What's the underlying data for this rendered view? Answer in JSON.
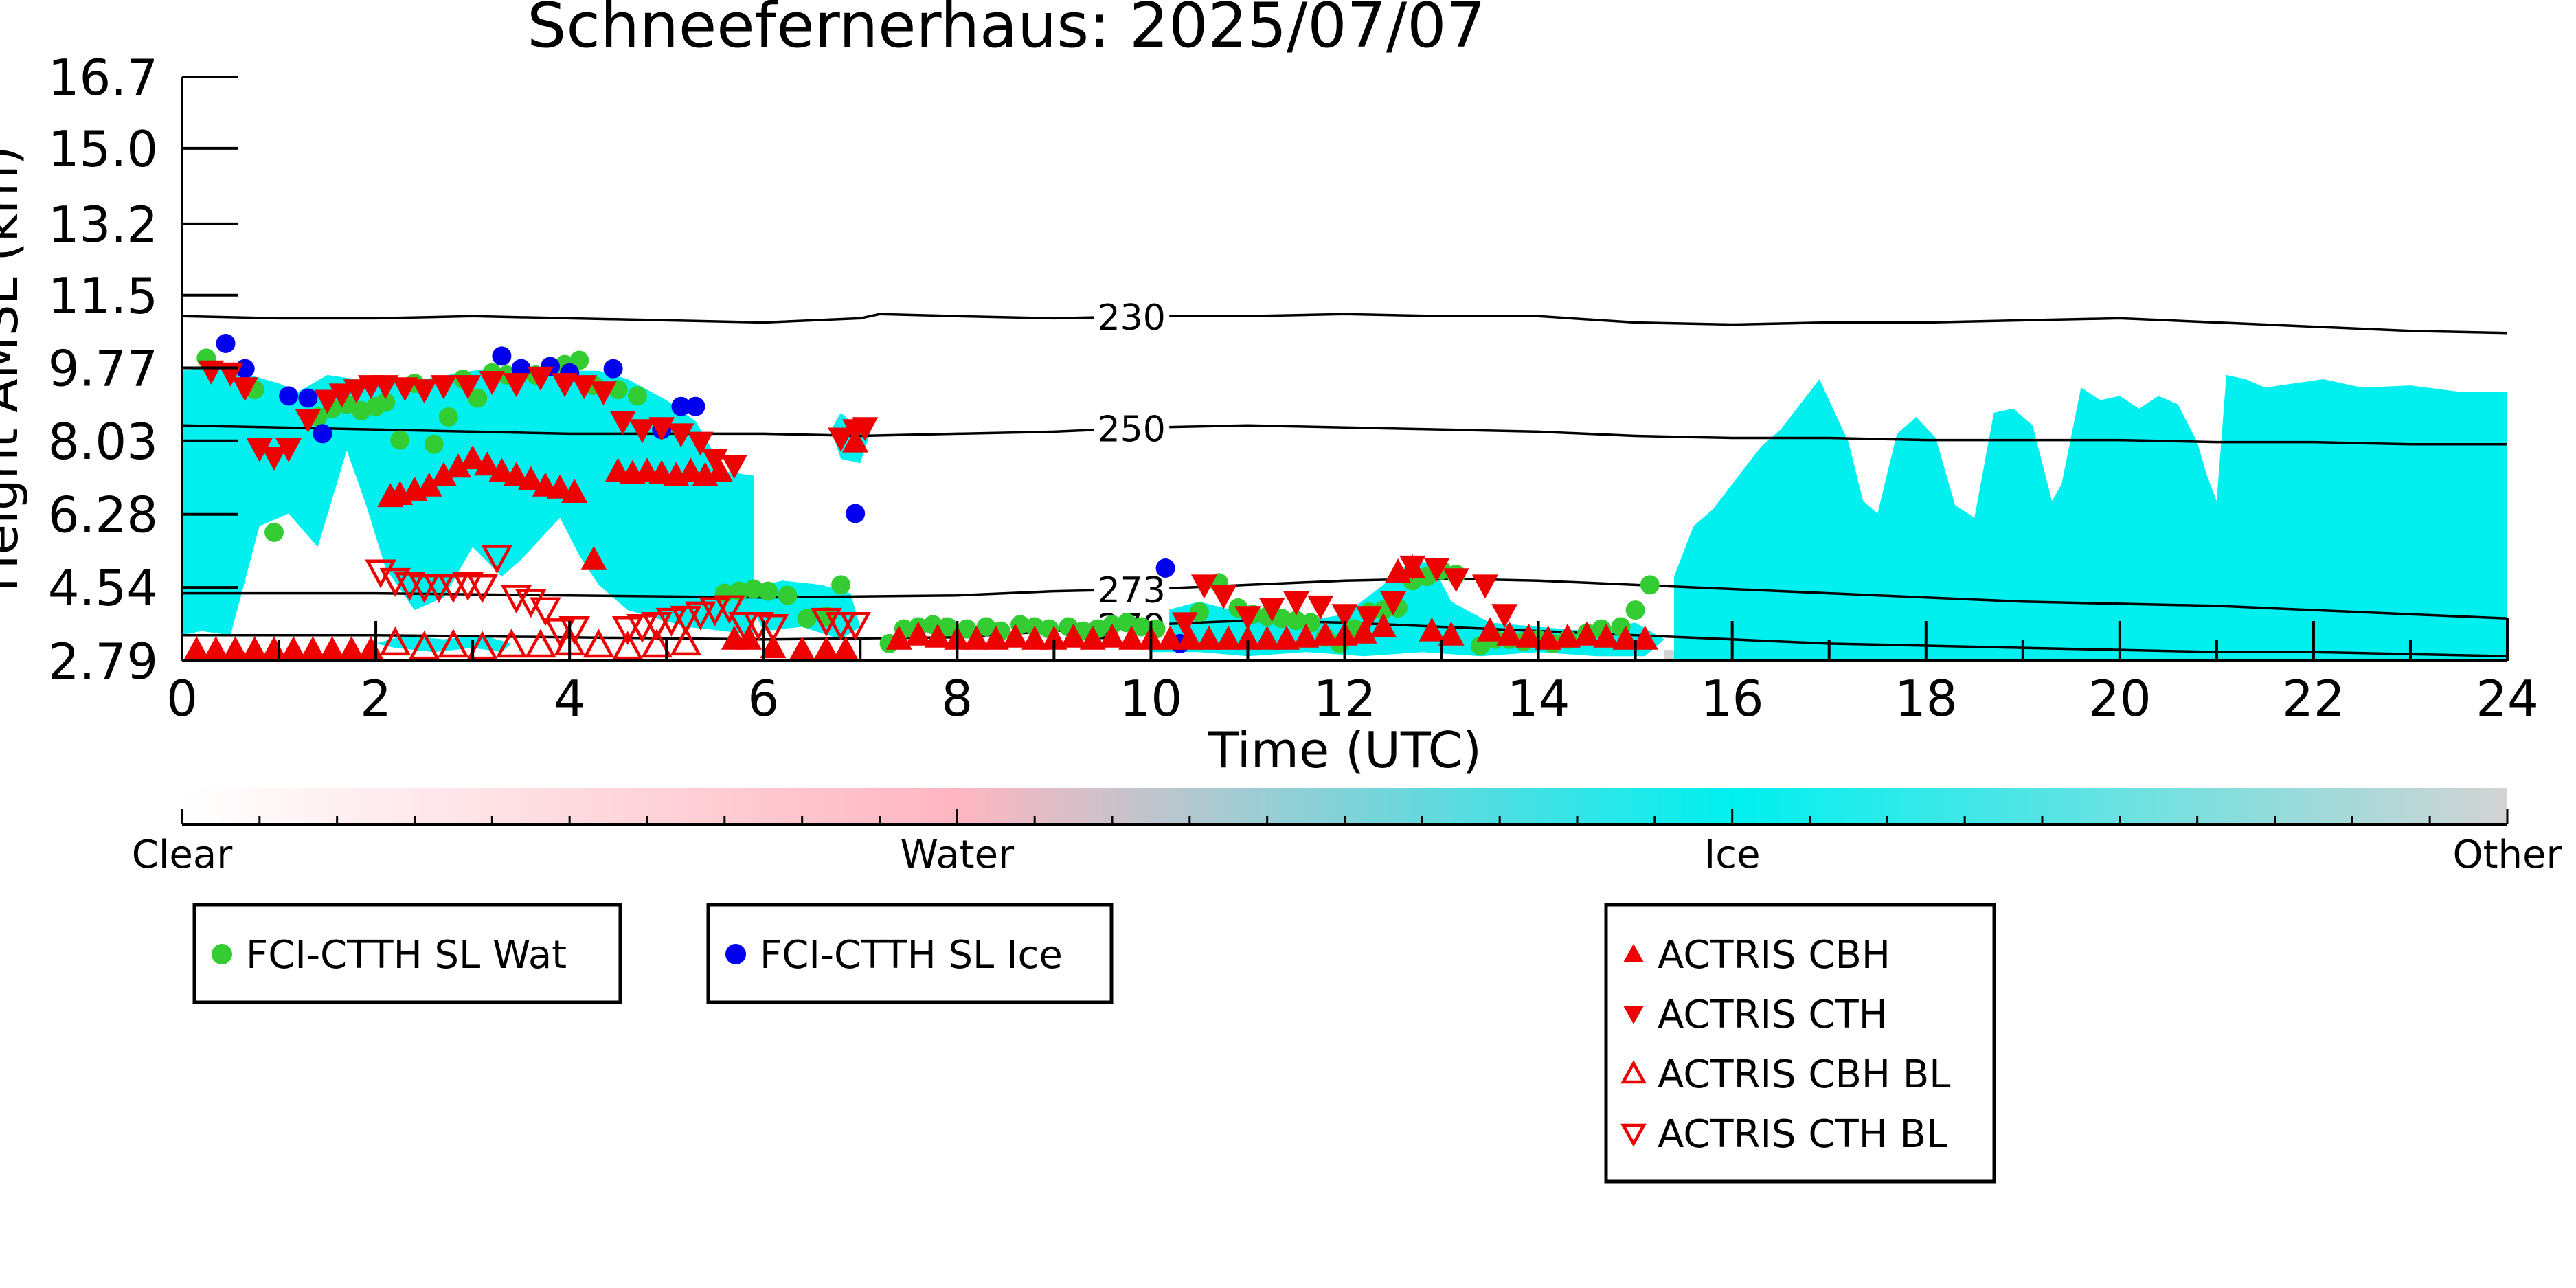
{
  "chart_data": {
    "type": "scatter",
    "title": "Schneefernerhaus: 2025/07/07",
    "xlabel": "Time (UTC)",
    "ylabel": "Height AMSL (km)",
    "xlim": [
      0,
      24
    ],
    "ylim": [
      2.79,
      16.7
    ],
    "x_ticks": [
      "0",
      "2",
      "4",
      "6",
      "8",
      "10",
      "12",
      "14",
      "16",
      "18",
      "20",
      "22",
      "24"
    ],
    "y_ticks": [
      "2.79",
      "4.54",
      "6.28",
      "8.03",
      "9.77",
      "11.5",
      "13.2",
      "15.0",
      "16.7"
    ],
    "grid": false,
    "colors": {
      "clear": "#ffffff",
      "water": "#ffb6c1",
      "ice": "#00f0f0",
      "other": "#d3d3d3",
      "fci_water": "#33cc33",
      "fci_ice": "#0000ee",
      "actris": "#ee0000",
      "isotherm": "#000000"
    },
    "classification": {
      "type": "heatmap",
      "labels": [
        "Clear",
        "Water",
        "Ice",
        "Other"
      ],
      "ice_regions": [
        {
          "x": [
            0,
            0.3,
            0.7,
            1.0,
            1.2,
            1.5,
            1.8,
            2.0,
            2.5,
            3.0,
            3.4,
            3.7,
            4.0,
            4.3,
            4.6,
            5.0,
            5.3,
            5.6,
            5.9,
            5.9,
            5.6,
            5.2,
            4.9,
            4.6,
            4.3,
            4.1,
            3.9,
            3.7,
            3.5,
            3.3,
            3.0,
            2.7,
            2.4,
            2.1,
            1.9,
            1.7,
            1.4,
            1.1,
            0.8,
            0.5,
            0.2,
            0
          ],
          "y": [
            9.7,
            9.8,
            9.6,
            9.4,
            9.2,
            9.6,
            9.5,
            9.4,
            9.5,
            9.7,
            9.8,
            9.6,
            9.7,
            9.7,
            9.5,
            9.0,
            8.5,
            7.3,
            7.2,
            3.4,
            3.5,
            3.6,
            3.8,
            4.0,
            4.6,
            5.3,
            6.2,
            5.7,
            5.2,
            4.8,
            5.5,
            4.3,
            4.0,
            5.0,
            6.5,
            7.8,
            5.5,
            6.3,
            6.0,
            3.4,
            3.5,
            3.4
          ]
        },
        {
          "x": [
            2.0,
            2.3,
            2.7,
            3.1,
            3.4,
            3.3,
            3.0,
            2.6,
            2.2
          ],
          "y": [
            3.2,
            3.4,
            3.3,
            3.4,
            3.2,
            3.0,
            3.1,
            3.0,
            3.1
          ]
        },
        {
          "x": [
            5.8,
            6.2,
            6.6,
            6.9,
            7.0,
            6.8,
            6.4,
            6.0
          ],
          "y": [
            4.5,
            4.7,
            4.6,
            4.4,
            3.6,
            3.3,
            3.6,
            3.5
          ]
        },
        {
          "x": [
            6.7,
            6.8,
            6.9,
            7.0,
            7.1,
            7.0,
            6.8
          ],
          "y": [
            8.3,
            8.7,
            8.5,
            8.6,
            8.2,
            7.5,
            7.6
          ]
        },
        {
          "x": [
            10.0,
            10.5,
            11.0,
            11.5,
            12.0,
            12.4,
            12.7,
            12.9,
            13.1,
            13.5,
            14.0,
            14.5,
            15.0,
            15.3,
            15.1,
            14.6,
            14.0,
            13.4,
            12.8,
            12.2,
            11.6,
            11.0,
            10.5,
            10.0
          ],
          "y": [
            3.9,
            4.2,
            3.9,
            3.7,
            3.9,
            4.6,
            5.2,
            5.1,
            4.2,
            3.7,
            3.6,
            3.5,
            3.7,
            3.3,
            2.9,
            2.9,
            3.0,
            2.9,
            3.0,
            2.9,
            3.0,
            2.9,
            3.0,
            3.0
          ]
        },
        {
          "x": [
            15.4,
            15.6,
            15.8,
            16.0,
            16.3,
            16.5,
            16.7,
            16.9,
            17.0,
            17.2,
            17.35,
            17.5,
            17.7,
            17.9,
            18.1,
            18.3,
            18.5,
            18.7,
            18.9,
            19.1,
            19.3,
            19.4,
            19.6,
            19.8,
            20.0,
            20.2,
            20.4,
            20.6,
            20.8,
            20.9,
            21.0,
            21.1,
            21.3,
            21.5,
            21.8,
            22.1,
            22.5,
            23.0,
            23.5,
            24.0,
            24.0,
            23.0,
            22.0,
            21.0,
            20.0,
            19.0,
            18.0,
            17.0,
            16.0,
            15.4
          ],
          "y": [
            4.8,
            6.0,
            6.4,
            7.0,
            7.9,
            8.3,
            8.9,
            9.5,
            9.0,
            8.0,
            6.6,
            6.3,
            8.2,
            8.6,
            8.1,
            6.5,
            6.2,
            8.7,
            8.8,
            8.4,
            6.6,
            7.0,
            9.3,
            9.0,
            9.1,
            8.8,
            9.1,
            8.9,
            8.0,
            7.2,
            6.6,
            9.6,
            9.5,
            9.3,
            9.4,
            9.5,
            9.3,
            9.35,
            9.2,
            9.2,
            2.79,
            2.8,
            2.8,
            2.79,
            2.8,
            2.8,
            2.79,
            2.79,
            2.8,
            2.79
          ]
        }
      ],
      "other_regions": [
        {
          "x": [
            15.3,
            16.0,
            18.0,
            20.0,
            22.0,
            24.0,
            24.0,
            15.3
          ],
          "y": [
            3.05,
            3.05,
            3.0,
            3.0,
            2.95,
            2.9,
            2.79,
            2.79
          ]
        }
      ]
    },
    "isotherms": [
      {
        "label": "230",
        "x": [
          0,
          1,
          2,
          3,
          4,
          5,
          6,
          7,
          7.2,
          8,
          9,
          10,
          11,
          12,
          13,
          14,
          15,
          16,
          17,
          18,
          19,
          20,
          21,
          22,
          23,
          24
        ],
        "y": [
          11.0,
          10.95,
          10.95,
          11.0,
          10.95,
          10.9,
          10.85,
          10.95,
          11.05,
          11.0,
          10.95,
          11.0,
          11.0,
          11.05,
          11.0,
          11.0,
          10.85,
          10.8,
          10.85,
          10.85,
          10.9,
          10.95,
          10.85,
          10.75,
          10.65,
          10.6
        ],
        "label_x": 9.8
      },
      {
        "label": "250",
        "x": [
          0,
          1,
          2,
          3,
          4,
          5,
          6,
          7,
          8,
          9,
          10,
          11,
          12,
          13,
          14,
          15,
          16,
          17,
          18,
          19,
          20,
          21,
          22,
          23,
          24
        ],
        "y": [
          8.4,
          8.35,
          8.3,
          8.25,
          8.2,
          8.2,
          8.2,
          8.15,
          8.2,
          8.25,
          8.35,
          8.4,
          8.35,
          8.3,
          8.25,
          8.15,
          8.1,
          8.1,
          8.05,
          8.05,
          8.05,
          8.0,
          8.0,
          7.95,
          7.95
        ],
        "label_x": 9.8
      },
      {
        "label": "273",
        "x": [
          0,
          2,
          4,
          6,
          8,
          9,
          10,
          11,
          12,
          13,
          14,
          15,
          16,
          17,
          18,
          19,
          20,
          21,
          22,
          23,
          24
        ],
        "y": [
          4.4,
          4.4,
          4.35,
          4.3,
          4.35,
          4.45,
          4.5,
          4.6,
          4.7,
          4.75,
          4.7,
          4.6,
          4.5,
          4.4,
          4.3,
          4.2,
          4.15,
          4.1,
          4.0,
          3.9,
          3.8
        ],
        "label_x": 9.8
      },
      {
        "label": "279",
        "x": [
          0,
          2,
          4,
          6,
          8,
          9,
          10,
          11,
          12,
          13,
          14,
          15,
          16,
          17,
          18,
          19,
          20,
          21,
          22,
          23,
          24
        ],
        "y": [
          3.4,
          3.4,
          3.35,
          3.3,
          3.35,
          3.5,
          3.65,
          3.75,
          3.7,
          3.6,
          3.5,
          3.4,
          3.3,
          3.2,
          3.15,
          3.1,
          3.05,
          3.0,
          3.0,
          2.95,
          2.9
        ],
        "label_x": 9.8
      }
    ],
    "series": [
      {
        "name": "FCI-CTTH SL Wat",
        "marker": "circle-filled",
        "color": "#33cc33",
        "x": [
          0.25,
          0.75,
          0.95,
          1.4,
          1.55,
          1.7,
          1.85,
          2.0,
          2.1,
          2.25,
          2.4,
          2.6,
          2.75,
          2.9,
          3.05,
          3.2,
          3.35,
          3.5,
          3.65,
          3.8,
          3.95,
          4.1,
          4.25,
          4.5,
          4.7,
          5.6,
          5.75,
          5.9,
          6.05,
          6.25,
          6.45,
          6.65,
          6.8,
          7.3,
          7.45,
          7.6,
          7.75,
          7.9,
          8.1,
          8.3,
          8.45,
          8.65,
          8.8,
          8.95,
          9.15,
          9.3,
          9.45,
          9.6,
          9.75,
          9.9,
          10.05,
          10.5,
          10.7,
          10.9,
          11.05,
          11.2,
          11.35,
          11.5,
          11.65,
          11.8,
          11.95,
          12.1,
          12.25,
          12.4,
          12.55,
          12.7,
          12.85,
          13.0,
          13.15,
          13.4,
          13.55,
          13.7,
          13.85,
          14.0,
          14.15,
          14.3,
          14.5,
          14.65,
          14.85,
          15.0,
          15.15
        ],
        "y": [
          10.0,
          9.25,
          5.85,
          8.6,
          8.8,
          8.9,
          8.75,
          8.85,
          8.95,
          8.05,
          9.4,
          7.95,
          8.6,
          9.5,
          9.05,
          9.65,
          9.6,
          9.75,
          9.6,
          9.8,
          9.85,
          9.95,
          9.35,
          9.25,
          9.1,
          4.4,
          4.45,
          4.5,
          4.45,
          4.35,
          3.8,
          3.85,
          4.6,
          3.2,
          3.55,
          3.6,
          3.65,
          3.6,
          3.55,
          3.6,
          3.5,
          3.65,
          3.6,
          3.55,
          3.6,
          3.5,
          3.55,
          3.65,
          3.7,
          3.6,
          3.55,
          3.95,
          4.65,
          4.05,
          3.9,
          3.85,
          3.8,
          3.75,
          3.7,
          3.35,
          3.2,
          3.55,
          3.95,
          4.0,
          4.05,
          4.7,
          4.8,
          4.95,
          4.85,
          3.15,
          3.3,
          3.3,
          3.25,
          3.3,
          3.2,
          3.3,
          3.45,
          3.55,
          3.6,
          4.0,
          4.6
        ]
      },
      {
        "name": "FCI-CTTH SL Ice",
        "marker": "circle-filled",
        "color": "#0000ee",
        "x": [
          0.45,
          0.65,
          1.1,
          1.3,
          1.45,
          3.3,
          3.5,
          3.8,
          4.0,
          4.45,
          4.95,
          5.15,
          5.3,
          6.95,
          10.15,
          10.3
        ],
        "y": [
          10.35,
          9.75,
          9.1,
          9.05,
          8.2,
          10.05,
          9.75,
          9.8,
          9.65,
          9.75,
          8.3,
          8.85,
          8.85,
          6.3,
          5.0,
          3.2
        ]
      },
      {
        "name": "ACTRIS CBH",
        "marker": "triangle-up-filled",
        "color": "#ee0000",
        "x": [
          0.15,
          0.35,
          0.55,
          0.75,
          0.95,
          1.15,
          1.35,
          1.55,
          1.75,
          1.95,
          2.15,
          2.25,
          2.4,
          2.55,
          2.7,
          2.85,
          3.0,
          3.15,
          3.3,
          3.45,
          3.6,
          3.75,
          3.9,
          4.05,
          4.25,
          4.5,
          4.65,
          4.8,
          4.95,
          5.1,
          5.25,
          5.4,
          5.55,
          5.7,
          5.85,
          6.1,
          6.4,
          6.65,
          6.85,
          6.95,
          7.4,
          7.6,
          7.8,
          8.0,
          8.2,
          8.4,
          8.6,
          8.8,
          9.0,
          9.2,
          9.4,
          9.6,
          9.8,
          10.0,
          10.2,
          10.4,
          10.6,
          10.8,
          11.0,
          11.2,
          11.4,
          11.6,
          11.8,
          12.0,
          12.2,
          12.4,
          12.55,
          12.7,
          12.9,
          13.1,
          13.5,
          13.7,
          13.9,
          14.1,
          14.3,
          14.5,
          14.7,
          14.9,
          15.1
        ],
        "y": [
          3.05,
          3.05,
          3.05,
          3.05,
          3.05,
          3.05,
          3.05,
          3.05,
          3.05,
          3.05,
          6.7,
          6.75,
          6.85,
          6.95,
          7.2,
          7.4,
          7.6,
          7.45,
          7.3,
          7.2,
          7.1,
          6.95,
          6.9,
          6.8,
          5.2,
          7.3,
          7.25,
          7.3,
          7.25,
          7.2,
          7.3,
          7.2,
          7.3,
          3.3,
          3.3,
          3.1,
          3.05,
          3.05,
          3.05,
          8.0,
          3.3,
          3.4,
          3.35,
          3.3,
          3.3,
          3.3,
          3.35,
          3.3,
          3.3,
          3.35,
          3.3,
          3.35,
          3.3,
          3.3,
          3.3,
          3.3,
          3.3,
          3.3,
          3.3,
          3.3,
          3.3,
          3.35,
          3.4,
          3.4,
          3.45,
          3.6,
          4.9,
          5.0,
          3.5,
          3.4,
          3.5,
          3.4,
          3.35,
          3.3,
          3.35,
          3.4,
          3.35,
          3.3,
          3.3
        ]
      },
      {
        "name": "ACTRIS CTH",
        "marker": "triangle-down-filled",
        "color": "#ee0000",
        "x": [
          0.3,
          0.5,
          0.65,
          0.8,
          0.95,
          1.1,
          1.3,
          1.5,
          1.65,
          1.8,
          1.95,
          2.1,
          2.3,
          2.5,
          2.7,
          2.95,
          3.2,
          3.45,
          3.7,
          3.95,
          4.15,
          4.35,
          4.55,
          4.75,
          4.95,
          5.15,
          5.35,
          5.5,
          5.7,
          6.8,
          6.95,
          7.05,
          10.35,
          10.55,
          10.75,
          11.0,
          11.25,
          11.5,
          11.75,
          12.0,
          12.25,
          12.5,
          12.7,
          12.95,
          13.15,
          13.45,
          13.65
        ],
        "y": [
          9.7,
          9.65,
          9.3,
          7.85,
          7.65,
          7.85,
          8.55,
          9.0,
          9.15,
          9.25,
          9.35,
          9.35,
          9.3,
          9.25,
          9.35,
          9.35,
          9.45,
          9.4,
          9.55,
          9.4,
          9.35,
          9.2,
          8.5,
          8.3,
          8.35,
          8.2,
          8.0,
          7.6,
          7.45,
          8.1,
          8.3,
          8.35,
          3.7,
          4.6,
          4.35,
          3.85,
          4.05,
          4.2,
          4.1,
          3.9,
          3.85,
          4.2,
          5.05,
          5.0,
          4.75,
          4.6,
          3.9
        ]
      },
      {
        "name": "ACTRIS CBH BL",
        "marker": "triangle-up-open",
        "color": "#ee0000",
        "x": [
          2.2,
          2.5,
          2.8,
          3.1,
          3.4,
          3.7,
          4.0,
          4.3,
          4.6,
          4.9,
          5.2
        ],
        "y": [
          3.2,
          3.1,
          3.15,
          3.1,
          3.15,
          3.15,
          3.2,
          3.15,
          3.1,
          3.15,
          3.2
        ]
      },
      {
        "name": "ACTRIS CTH BL",
        "marker": "triangle-down-open",
        "color": "#ee0000",
        "x": [
          2.05,
          2.2,
          2.35,
          2.5,
          2.65,
          2.8,
          2.95,
          3.1,
          3.25,
          3.45,
          3.6,
          3.75,
          3.9,
          4.05,
          4.6,
          4.75,
          4.9,
          5.05,
          5.2,
          5.35,
          5.5,
          5.65,
          5.8,
          5.95,
          6.1,
          6.65,
          6.8,
          6.95
        ],
        "y": [
          4.92,
          4.72,
          4.62,
          4.57,
          4.57,
          4.57,
          4.62,
          4.57,
          5.27,
          4.32,
          4.22,
          4.02,
          3.52,
          3.57,
          3.57,
          3.62,
          3.67,
          3.77,
          3.82,
          3.92,
          4.02,
          4.07,
          3.67,
          3.67,
          3.62,
          3.77,
          3.67,
          3.67
        ]
      }
    ],
    "legends": [
      {
        "items": [
          "FCI-CTTH SL Wat"
        ]
      },
      {
        "items": [
          "FCI-CTTH SL Ice"
        ]
      },
      {
        "items": [
          "ACTRIS CBH",
          "ACTRIS CTH",
          "ACTRIS CBH BL",
          "ACTRIS CTH BL"
        ]
      }
    ]
  }
}
